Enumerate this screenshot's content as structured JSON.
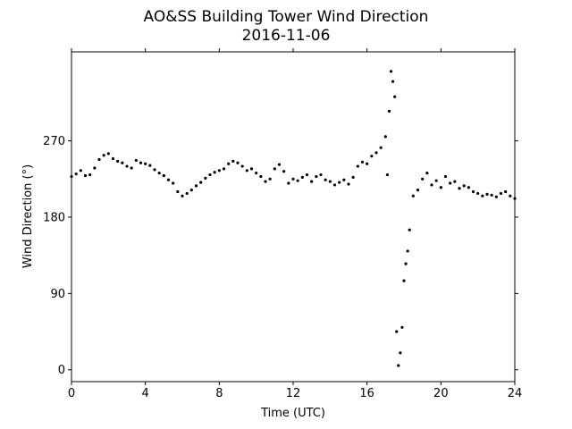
{
  "chart_data": {
    "type": "scatter",
    "title": "AO&SS Building Tower Wind Direction",
    "subtitle": "2016-11-06",
    "xlabel": "Time (UTC)",
    "ylabel": "Wind Direction (°)",
    "xlim": [
      0,
      24
    ],
    "ylim": [
      -14,
      375
    ],
    "xticks": [
      0,
      4,
      8,
      12,
      16,
      20,
      24
    ],
    "xtick_labels": [
      "0",
      "4",
      "8",
      "12",
      "16",
      "20",
      "24"
    ],
    "yticks": [
      0,
      90,
      180,
      270
    ],
    "ytick_labels": [
      "0",
      "90",
      "180",
      "270"
    ],
    "grid": false,
    "marker_color": "#000000",
    "series": [
      {
        "x": [
          0.0,
          0.25,
          0.5,
          0.75,
          1.0,
          1.25,
          1.5,
          1.75,
          2.0,
          2.25,
          2.5,
          2.75,
          3.0,
          3.25,
          3.5,
          3.75,
          4.0,
          4.25,
          4.5,
          4.75,
          5.0,
          5.25,
          5.5,
          5.75,
          6.0,
          6.25,
          6.5,
          6.75,
          7.0,
          7.25,
          7.5,
          7.75,
          8.0,
          8.25,
          8.5,
          8.75,
          9.0,
          9.25,
          9.5,
          9.75,
          10.0,
          10.25,
          10.5,
          10.75,
          11.0,
          11.25,
          11.5,
          11.75,
          12.0,
          12.25,
          12.5,
          12.75,
          13.0,
          13.25,
          13.5,
          13.75,
          14.0,
          14.25,
          14.5,
          14.75,
          15.0,
          15.25,
          15.5,
          15.75,
          16.0,
          16.25,
          16.5,
          16.75,
          17.0,
          17.1,
          17.2,
          17.3,
          17.4,
          17.5,
          17.6,
          17.7,
          17.8,
          17.9,
          18.0,
          18.1,
          18.2,
          18.3,
          18.5,
          18.75,
          19.0,
          19.25,
          19.5,
          19.75,
          20.0,
          20.25,
          20.5,
          20.75,
          21.0,
          21.25,
          21.5,
          21.75,
          22.0,
          22.25,
          22.5,
          22.75,
          23.0,
          23.25,
          23.5,
          23.75,
          24.0
        ],
        "y": [
          228,
          231,
          235,
          229,
          230,
          238,
          248,
          253,
          255,
          249,
          246,
          244,
          240,
          238,
          247,
          244,
          243,
          241,
          236,
          232,
          229,
          224,
          220,
          210,
          205,
          208,
          212,
          217,
          221,
          226,
          230,
          233,
          235,
          237,
          243,
          246,
          244,
          240,
          235,
          237,
          232,
          228,
          222,
          225,
          237,
          242,
          234,
          220,
          225,
          223,
          227,
          230,
          222,
          228,
          230,
          224,
          222,
          218,
          221,
          224,
          219,
          227,
          240,
          245,
          243,
          252,
          256,
          262,
          275,
          230,
          305,
          352,
          340,
          322,
          45,
          5,
          20,
          50,
          105,
          125,
          140,
          165,
          205,
          212,
          225,
          232,
          218,
          223,
          215,
          228,
          220,
          222,
          214,
          217,
          215,
          210,
          208,
          205,
          207,
          206,
          204,
          208,
          210,
          205,
          202
        ]
      }
    ]
  }
}
